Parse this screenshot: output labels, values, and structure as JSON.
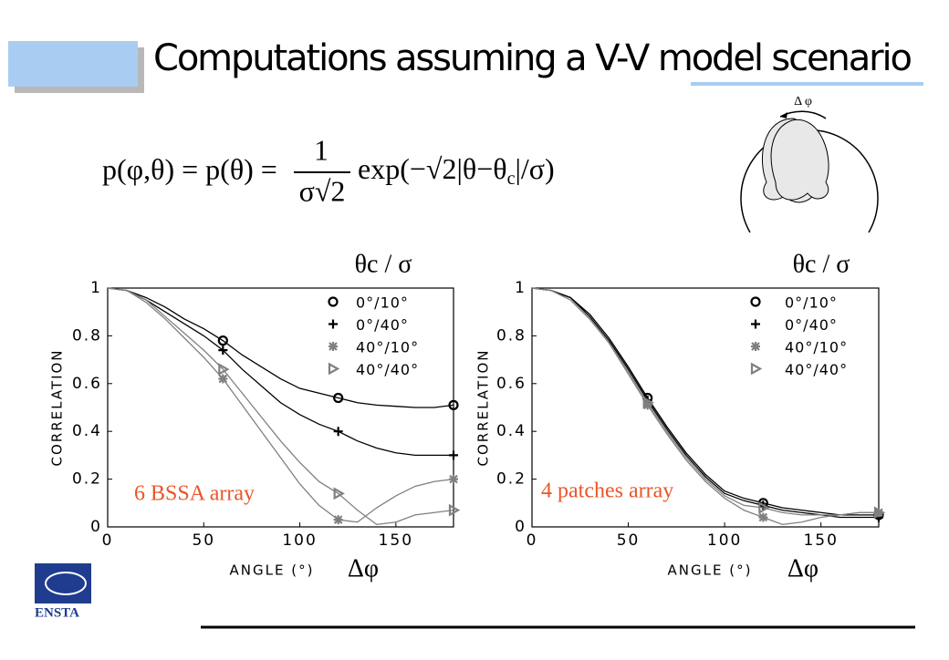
{
  "slide_title": "Computations assuming a V-V model scenario",
  "formula": {
    "lhs": "p(φ,θ) = p(θ) =",
    "numerator": "1",
    "denominator": "σ√2",
    "exp_start": "exp(−√2|θ−θ",
    "exp_sub": "c",
    "exp_end": "|/σ)"
  },
  "diagram_label": "Δ φ",
  "logo": "ENSTA",
  "chart_data": [
    {
      "type": "line",
      "legend_title": "θc / σ",
      "xlabel": "ANGLE (°)",
      "x_symbol": "Δφ",
      "ylabel": "CORRELATION",
      "annotation": "6 BSSA array",
      "annotation_color": "#e8562a",
      "x": [
        0,
        10,
        20,
        30,
        40,
        50,
        60,
        70,
        80,
        90,
        100,
        110,
        120,
        130,
        140,
        150,
        160,
        170,
        180
      ],
      "marker_x": [
        60,
        120,
        180
      ],
      "xlim": [
        0,
        180
      ],
      "ylim": [
        0,
        1
      ],
      "xticks": [
        0,
        50,
        100,
        150
      ],
      "yticks": [
        0,
        0.2,
        0.4,
        0.6,
        0.8,
        1
      ],
      "series": [
        {
          "name": "0°/10°",
          "color": "#000000",
          "marker": "circle",
          "values": [
            1,
            0.99,
            0.96,
            0.92,
            0.87,
            0.83,
            0.78,
            0.72,
            0.67,
            0.62,
            0.58,
            0.56,
            0.54,
            0.52,
            0.51,
            0.505,
            0.5,
            0.5,
            0.51
          ]
        },
        {
          "name": "0°/40°",
          "color": "#000000",
          "marker": "plus",
          "values": [
            1,
            0.99,
            0.95,
            0.9,
            0.85,
            0.8,
            0.74,
            0.66,
            0.59,
            0.52,
            0.47,
            0.43,
            0.4,
            0.36,
            0.33,
            0.31,
            0.3,
            0.3,
            0.3
          ]
        },
        {
          "name": "40°/10°",
          "color": "#808080",
          "marker": "star",
          "values": [
            1,
            0.99,
            0.94,
            0.87,
            0.79,
            0.71,
            0.62,
            0.51,
            0.4,
            0.29,
            0.18,
            0.09,
            0.03,
            0.02,
            0.08,
            0.13,
            0.17,
            0.19,
            0.2
          ]
        },
        {
          "name": "40°/40°",
          "color": "#808080",
          "marker": "triangle",
          "values": [
            1,
            0.99,
            0.95,
            0.88,
            0.81,
            0.74,
            0.66,
            0.56,
            0.46,
            0.36,
            0.27,
            0.19,
            0.14,
            0.07,
            0.01,
            0.02,
            0.05,
            0.06,
            0.07
          ]
        }
      ]
    },
    {
      "type": "line",
      "legend_title": "θc / σ",
      "xlabel": "ANGLE (°)",
      "x_symbol": "Δφ",
      "ylabel": "CORRELATION",
      "annotation": "4 patches array",
      "annotation_color": "#e8562a",
      "x": [
        0,
        10,
        20,
        30,
        40,
        50,
        60,
        70,
        80,
        90,
        100,
        110,
        120,
        130,
        140,
        150,
        160,
        170,
        180
      ],
      "marker_x": [
        60,
        120,
        180
      ],
      "xlim": [
        0,
        180
      ],
      "ylim": [
        0,
        1
      ],
      "xticks": [
        0,
        50,
        100,
        150
      ],
      "yticks": [
        0,
        0.2,
        0.4,
        0.6,
        0.8,
        1
      ],
      "series": [
        {
          "name": "0°/10°",
          "color": "#000000",
          "marker": "circle",
          "values": [
            1,
            0.99,
            0.96,
            0.89,
            0.79,
            0.67,
            0.54,
            0.42,
            0.31,
            0.22,
            0.15,
            0.12,
            0.1,
            0.08,
            0.07,
            0.06,
            0.05,
            0.05,
            0.05
          ]
        },
        {
          "name": "0°/40°",
          "color": "#000000",
          "marker": "plus",
          "values": [
            1,
            0.99,
            0.96,
            0.88,
            0.78,
            0.66,
            0.53,
            0.41,
            0.3,
            0.21,
            0.14,
            0.11,
            0.09,
            0.07,
            0.06,
            0.05,
            0.04,
            0.04,
            0.04
          ]
        },
        {
          "name": "40°/10°",
          "color": "#808080",
          "marker": "star",
          "values": [
            1,
            0.99,
            0.95,
            0.87,
            0.77,
            0.64,
            0.51,
            0.39,
            0.28,
            0.19,
            0.12,
            0.07,
            0.04,
            0.01,
            0.02,
            0.04,
            0.05,
            0.06,
            0.06
          ]
        },
        {
          "name": "40°/40°",
          "color": "#808080",
          "marker": "triangle",
          "values": [
            1,
            0.99,
            0.95,
            0.87,
            0.77,
            0.65,
            0.52,
            0.4,
            0.29,
            0.2,
            0.13,
            0.09,
            0.08,
            0.06,
            0.05,
            0.05,
            0.05,
            0.06,
            0.06
          ]
        }
      ]
    }
  ]
}
